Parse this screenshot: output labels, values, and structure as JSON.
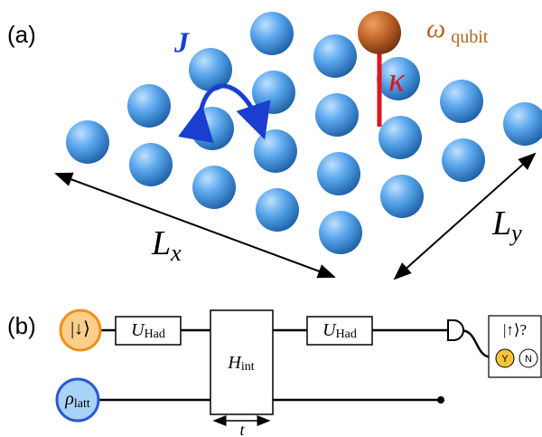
{
  "panel_a": {
    "label": "(a)",
    "hopping": "J",
    "qubit_frequency": {
      "main": "ω",
      "sub": "qubit"
    },
    "coupling": "κ",
    "length_x": {
      "main": "L",
      "sub": "x"
    },
    "length_y": {
      "main": "L",
      "sub": "y"
    }
  },
  "panel_b": {
    "label": "(b)",
    "qubit_state": "|↓⟩",
    "lattice_state": {
      "main": "ρ",
      "sub": "latt"
    },
    "gate_1": {
      "main": "U",
      "sub": "Had"
    },
    "interaction": {
      "main": "H",
      "sub": "int"
    },
    "gate_2": {
      "main": "U",
      "sub": "Had"
    },
    "duration": "t",
    "measurement": {
      "question": "|↑⟩?",
      "yes": "Y",
      "no": "N"
    }
  }
}
